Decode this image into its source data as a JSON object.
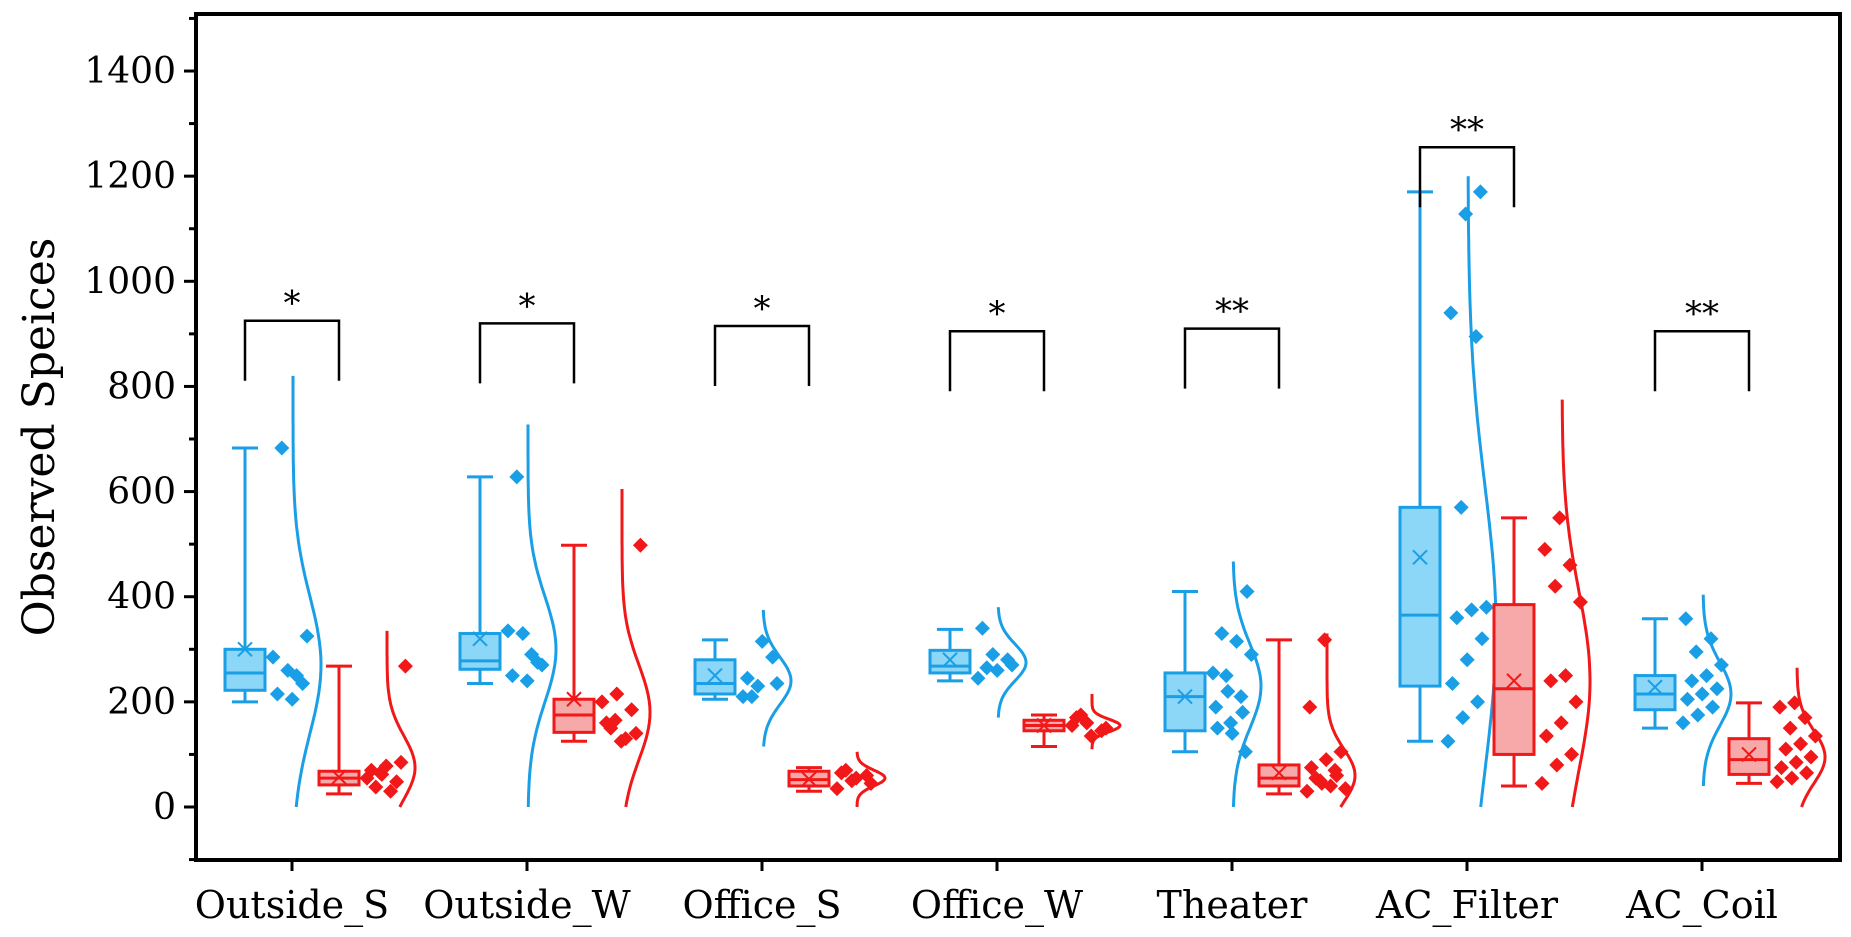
{
  "chart_data": {
    "type": "box",
    "ylabel": "Observed Speices",
    "xlabel": "",
    "title": "",
    "ylim": [
      -100,
      1400
    ],
    "yticks": [
      0,
      200,
      400,
      600,
      800,
      1000,
      1200,
      1400
    ],
    "categories": [
      "Outside_S",
      "Outside_W",
      "Office_S",
      "Office_W",
      "Theater",
      "AC_Filter",
      "AC_Coil"
    ],
    "colors": {
      "blue": "#1a9fe6",
      "blue_fill": "#8cd6f7",
      "red": "#f01818",
      "red_fill": "#f7a8a8"
    },
    "significance": [
      "*",
      "*",
      "*",
      "*",
      "**",
      "**",
      "**"
    ],
    "groups": [
      {
        "category": "Outside_S",
        "blue": {
          "min": 200,
          "q1": 222,
          "median": 255,
          "q3": 300,
          "max": 683,
          "mean": 300,
          "points": [
            285,
            260,
            235,
            215,
            205,
            325,
            683,
            250
          ],
          "curve": {
            "peak_y": 270,
            "sd": 130,
            "extent": [
              0,
              820
            ]
          }
        },
        "red": {
          "min": 25,
          "q1": 42,
          "median": 55,
          "q3": 68,
          "max": 268,
          "mean": 57,
          "points": [
            55,
            62,
            48,
            70,
            78,
            85,
            38,
            30,
            268,
            65
          ],
          "curve": {
            "peak_y": 75,
            "sd": 60,
            "extent": [
              0,
              335
            ]
          }
        },
        "bracket_y": 925
      },
      {
        "category": "Outside_W",
        "blue": {
          "min": 235,
          "q1": 262,
          "median": 278,
          "q3": 330,
          "max": 628,
          "mean": 320,
          "points": [
            335,
            330,
            275,
            250,
            240,
            270,
            628,
            290
          ],
          "curve": {
            "peak_y": 300,
            "sd": 100,
            "extent": [
              0,
              740
            ]
          }
        },
        "red": {
          "min": 125,
          "q1": 142,
          "median": 175,
          "q3": 205,
          "max": 498,
          "mean": 205,
          "points": [
            200,
            215,
            185,
            160,
            125,
            140,
            150,
            130,
            498,
            165
          ],
          "curve": {
            "peak_y": 180,
            "sd": 90,
            "extent": [
              0,
              605
            ]
          }
        },
        "bracket_y": 920
      },
      {
        "category": "Office_S",
        "blue": {
          "min": 205,
          "q1": 215,
          "median": 235,
          "q3": 280,
          "max": 318,
          "mean": 250,
          "points": [
            210,
            230,
            285,
            245,
            315,
            235,
            210
          ],
          "curve": {
            "peak_y": 240,
            "sd": 45,
            "extent": [
              115,
              375
            ]
          }
        },
        "red": {
          "min": 30,
          "q1": 40,
          "median": 52,
          "q3": 68,
          "max": 75,
          "mean": 53,
          "points": [
            35,
            50,
            60,
            65,
            55,
            45,
            70
          ],
          "curve": {
            "peak_y": 55,
            "sd": 15,
            "extent": [
              0,
              105
            ]
          }
        },
        "bracket_y": 915
      },
      {
        "category": "Office_W",
        "blue": {
          "min": 240,
          "q1": 255,
          "median": 268,
          "q3": 298,
          "max": 338,
          "mean": 280,
          "points": [
            245,
            290,
            280,
            340,
            260,
            270,
            265
          ],
          "curve": {
            "peak_y": 275,
            "sd": 35,
            "extent": [
              170,
              380
            ]
          }
        },
        "red": {
          "min": 115,
          "q1": 145,
          "median": 155,
          "q3": 165,
          "max": 175,
          "mean": 155,
          "points": [
            155,
            160,
            145,
            170,
            135,
            150,
            175
          ],
          "curve": {
            "peak_y": 155,
            "sd": 12,
            "extent": [
              110,
              215
            ]
          }
        },
        "bracket_y": 905
      },
      {
        "category": "Theater",
        "blue": {
          "min": 105,
          "q1": 145,
          "median": 210,
          "q3": 255,
          "max": 410,
          "mean": 210,
          "points": [
            255,
            220,
            180,
            150,
            140,
            410,
            330,
            315,
            290,
            250,
            210,
            190,
            160,
            105
          ],
          "curve": {
            "peak_y": 230,
            "sd": 80,
            "extent": [
              0,
              475
            ]
          }
        },
        "red": {
          "min": 25,
          "q1": 40,
          "median": 55,
          "q3": 80,
          "max": 318,
          "mean": 65,
          "points": [
            30,
            45,
            60,
            75,
            90,
            105,
            55,
            40,
            35,
            50,
            70,
            190,
            318
          ],
          "curve": {
            "peak_y": 60,
            "sd": 50,
            "extent": [
              0,
              330
            ]
          }
        },
        "bracket_y": 910
      },
      {
        "category": "AC_Filter",
        "blue": {
          "min": 125,
          "q1": 230,
          "median": 365,
          "q3": 570,
          "max": 1170,
          "mean": 475,
          "points": [
            125,
            170,
            200,
            235,
            280,
            320,
            360,
            375,
            380,
            570,
            895,
            940,
            1128,
            1170
          ],
          "curve": {
            "peak_y": 340,
            "sd": 270,
            "extent": [
              0,
              1200
            ]
          }
        },
        "red": {
          "min": 40,
          "q1": 100,
          "median": 225,
          "q3": 385,
          "max": 550,
          "mean": 240,
          "points": [
            45,
            80,
            100,
            135,
            160,
            200,
            240,
            250,
            390,
            420,
            460,
            490,
            550
          ],
          "curve": {
            "peak_y": 240,
            "sd": 170,
            "extent": [
              0,
              775
            ]
          }
        },
        "bracket_y": 1255
      },
      {
        "category": "AC_Coil",
        "blue": {
          "min": 150,
          "q1": 185,
          "median": 215,
          "q3": 250,
          "max": 358,
          "mean": 228,
          "points": [
            160,
            175,
            190,
            205,
            215,
            225,
            240,
            250,
            270,
            295,
            320,
            358
          ],
          "curve": {
            "peak_y": 215,
            "sd": 60,
            "extent": [
              40,
              410
            ]
          }
        },
        "red": {
          "min": 45,
          "q1": 62,
          "median": 90,
          "q3": 130,
          "max": 198,
          "mean": 100,
          "points": [
            48,
            55,
            65,
            75,
            85,
            95,
            110,
            120,
            135,
            150,
            170,
            190,
            198
          ],
          "curve": {
            "peak_y": 95,
            "sd": 50,
            "extent": [
              0,
              265
            ]
          }
        },
        "bracket_y": 905
      }
    ]
  }
}
